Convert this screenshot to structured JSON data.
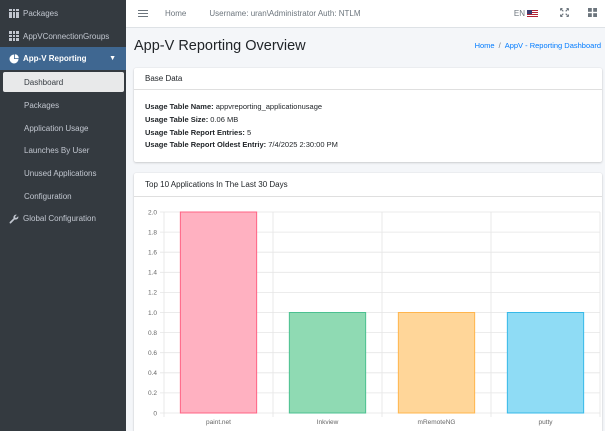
{
  "sidebar": {
    "items": [
      {
        "label": "Packages",
        "icon": "grid-icon"
      },
      {
        "label": "AppVConnectionGroups",
        "icon": "grid-icon"
      },
      {
        "label": "App-V Reporting",
        "icon": "pie-chart-icon"
      },
      {
        "label": "Dashboard"
      },
      {
        "label": "Packages"
      },
      {
        "label": "Application Usage"
      },
      {
        "label": "Launches By User"
      },
      {
        "label": "Unused Applications"
      },
      {
        "label": "Configuration"
      },
      {
        "label": "Global Configuration",
        "icon": "wrench-icon"
      }
    ]
  },
  "topbar": {
    "home": "Home",
    "user_info": "Username: uran\\Administrator Auth: NTLM",
    "lang": "EN"
  },
  "page": {
    "title": "App-V Reporting Overview",
    "breadcrumb": [
      "Home",
      "/",
      "AppV - Reporting Dashboard"
    ]
  },
  "base_data": {
    "header": "Base Data",
    "rows": [
      {
        "label": "Usage Table Name:",
        "value": " appvreporting_applicationusage"
      },
      {
        "label": "Usage Table Size:",
        "value": " 0.06 MB"
      },
      {
        "label": "Usage Table Report Entries:",
        "value": " 5"
      },
      {
        "label": "Usage Table Report Oldest Entriy:",
        "value": " 7/4/2025 2:30:00 PM"
      }
    ]
  },
  "top_apps": {
    "header": "Top 10 Applications In The Last 30 Days"
  },
  "colors": {
    "sidebar_bg": "#343a40",
    "active_bg": "#3f6791",
    "link": "#007bff"
  },
  "chart_data": {
    "type": "bar",
    "categories": [
      "paint.net",
      "Inkview",
      "mRemoteNG",
      "putty"
    ],
    "values": [
      2.0,
      1.0,
      1.0,
      1.0
    ],
    "ylim": [
      0,
      2.0
    ],
    "yticks": [
      "0",
      "0.2",
      "0.4",
      "0.6",
      "0.8",
      "1.0",
      "1.2",
      "1.4",
      "1.6",
      "1.8",
      "2.0"
    ],
    "colors": [
      {
        "fill": "#ffb1c1",
        "stroke": "#ff6384"
      },
      {
        "fill": "#8fdab3",
        "stroke": "#4bc090"
      },
      {
        "fill": "#ffd699",
        "stroke": "#ffb54d"
      },
      {
        "fill": "#8fdcf5",
        "stroke": "#36b9e8"
      }
    ],
    "grid": true
  }
}
